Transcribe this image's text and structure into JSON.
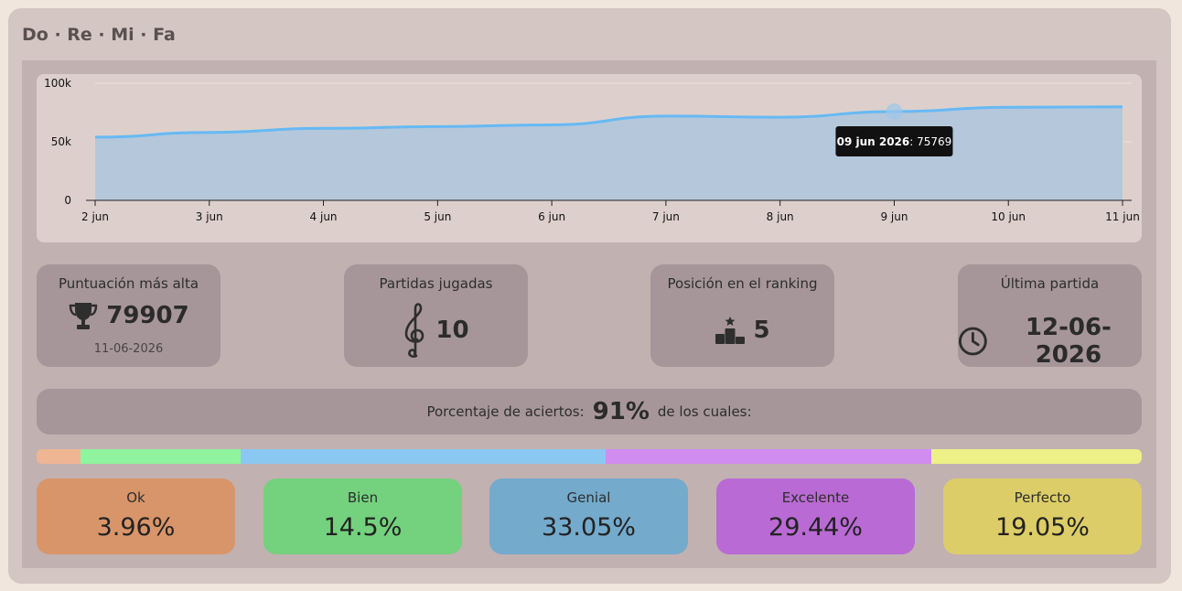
{
  "app": {
    "title": "Do · Re · Mi · Fa"
  },
  "chart_data": {
    "type": "area",
    "x": [
      "2 jun",
      "3 jun",
      "4 jun",
      "5 jun",
      "6 jun",
      "7 jun",
      "8 jun",
      "9 jun",
      "10 jun",
      "11 jun"
    ],
    "values": [
      54000,
      58000,
      61500,
      63000,
      64500,
      72000,
      71000,
      75769,
      79500,
      79907
    ],
    "ylim": [
      0,
      100000
    ],
    "yticks": [
      "0",
      "50k",
      "100k"
    ],
    "ytick_values": [
      0,
      50000,
      100000
    ],
    "grid": true,
    "colors": {
      "line": "#66b9f4",
      "fill": "#b5c7da"
    },
    "tooltip": {
      "index": 7,
      "date": "09 jun 2026",
      "value": "75769"
    }
  },
  "stats": {
    "highest": {
      "label": "Puntuación más alta",
      "value": "79907",
      "date": "11-06-2026",
      "icon": "trophy-icon"
    },
    "played": {
      "label": "Partidas jugadas",
      "value": "10",
      "icon": "treble-clef-icon"
    },
    "ranking": {
      "label": "Posición en el ranking",
      "value": "5",
      "icon": "podium-icon"
    },
    "last": {
      "label": "Última partida",
      "value": "12-06-2026",
      "icon": "clock-icon"
    }
  },
  "accuracy": {
    "prefix": "Porcentaje de aciertos:",
    "value": "91%",
    "suffix": "de los cuales:"
  },
  "breakdown": [
    {
      "label": "Ok",
      "value": "3.96%",
      "pct": 3.96,
      "bar_color": "#efb693",
      "card_color": "#d9956a"
    },
    {
      "label": "Bien",
      "value": "14.5%",
      "pct": 14.5,
      "bar_color": "#8ff49d",
      "card_color": "#74d17e"
    },
    {
      "label": "Genial",
      "value": "33.05%",
      "pct": 33.05,
      "bar_color": "#8ac8f2",
      "card_color": "#74aacc"
    },
    {
      "label": "Excelente",
      "value": "29.44%",
      "pct": 29.44,
      "bar_color": "#d18cf0",
      "card_color": "#b96ad4"
    },
    {
      "label": "Perfecto",
      "value": "19.05%",
      "pct": 19.05,
      "bar_color": "#eef088",
      "card_color": "#dccd68"
    }
  ]
}
